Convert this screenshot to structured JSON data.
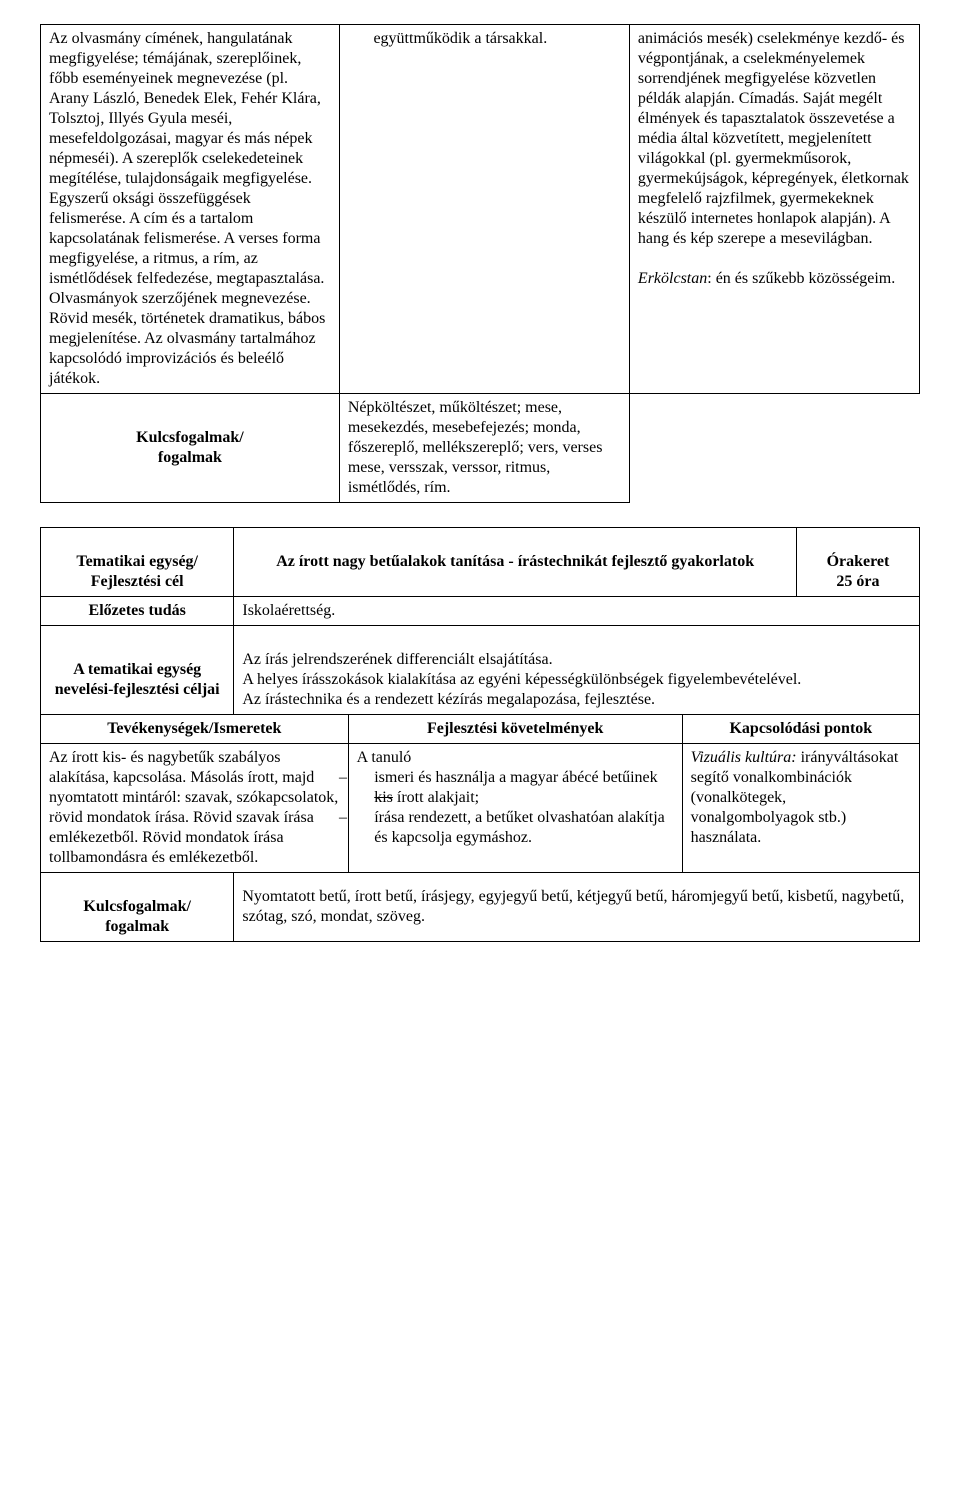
{
  "table1": {
    "col1": "Az olvasmány címének, hangulatának megfigyelése; témájának, szereplőinek, főbb eseményeinek megnevezése (pl. Arany László, Benedek Elek, Fehér Klára, Tolsztoj, Illyés Gyula meséi, mesefeldolgozásai, magyar és más népek népmeséi). A szereplők cselekedeteinek megítélése, tulajdonságaik megfigyelése. Egyszerű oksági összefüggések felismerése. A cím és a tartalom kapcsolatának felismerése. A verses forma megfigyelése, a ritmus, a rím, az ismétlődések felfedezése, megtapasztalása. Olvasmányok szerzőjének megnevezése. Rövid mesék, történetek dramatikus, bábos megjelenítése. Az olvasmány tartalmához kapcsolódó improvizációs és beleélő játékok.",
    "col2": "együttműködik a társakkal.",
    "col3a": "animációs mesék) cselekménye kezdő- és végpontjának, a cselekményelemek sorrendjének megfigyelése közvetlen példák alapján. Címadás. Saját megélt élmények és tapasztalatok összevetése a média által közvetített, megjelenített világokkal (pl. gyermekműsorok, gyermekújságok, képregények, életkornak megfelelő rajzfilmek, gyermekeknek készülő internetes honlapok alapján). A hang és kép szerepe a mesevilágban.",
    "col3b_italic": "Erkölcstan",
    "col3b_rest": ": én és szűkebb közösségeim.",
    "key_label": "Kulcsfogalmak/\nfogalmak",
    "key_value": "Népköltészet, műköltészet; mese, mesekezdés, mesebefejezés; monda, főszereplő, mellékszereplő; vers, verses mese, versszak, verssor, ritmus, ismétlődés, rím."
  },
  "table2": {
    "hdr": {
      "left": "Tematikai egység/\nFejlesztési cél",
      "mid": "Az írott nagy betűalakok tanítása - írástechnikát fejlesztő gyakorlatok",
      "right": "Órakeret\n25 óra"
    },
    "prior": {
      "label": "Előzetes tudás",
      "value": "Iskolaérettség."
    },
    "goals": {
      "label": "A tematikai egység nevelési-fejlesztési céljai",
      "value": "Az írás jelrendszerének differenciált elsajátítása.\nA helyes írásszokások kialakítása az egyéni képességkülönbségek figyelembevételével.\nAz írástechnika és a rendezett kézírás megalapozása, fejlesztése."
    },
    "cols": {
      "c1": "Tevékenységek/Ismeretek",
      "c2": "Fejlesztési követelmények",
      "c3": "Kapcsolódási pontok"
    },
    "row": {
      "c1": "Az írott kis- és nagybetűk szabályos alakítása, kapcsolása. Másolás írott, majd nyomtatott mintáról: szavak, szókapcsolatok, rövid mondatok írása. Rövid szavak írása emlékezetből. Rövid mondatok írása tollbamondásra és emlékezetből.",
      "c2_lead": "A tanuló",
      "c2_item1a": "ismeri és használja a magyar ábécé betűinek ",
      "c2_item1_strike": "kis",
      "c2_item1b": " írott alakjait;",
      "c2_item2": "írása rendezett, a betűket olvashatóan alakítja és kapcsolja egymáshoz.",
      "c3_italic": "Vizuális kultúra:",
      "c3_rest": " irányváltásokat segítő vonalkombinációk (vonalkötegek, vonalgombolyagok stb.) használata."
    },
    "key_label": "Kulcsfogalmak/\nfogalmak",
    "key_value": "Nyomtatott betű, írott betű, írásjegy, egyjegyű betű, kétjegyű betű, háromjegyű betű, kisbetű, nagybetű, szótag, szó, mondat, szöveg."
  }
}
